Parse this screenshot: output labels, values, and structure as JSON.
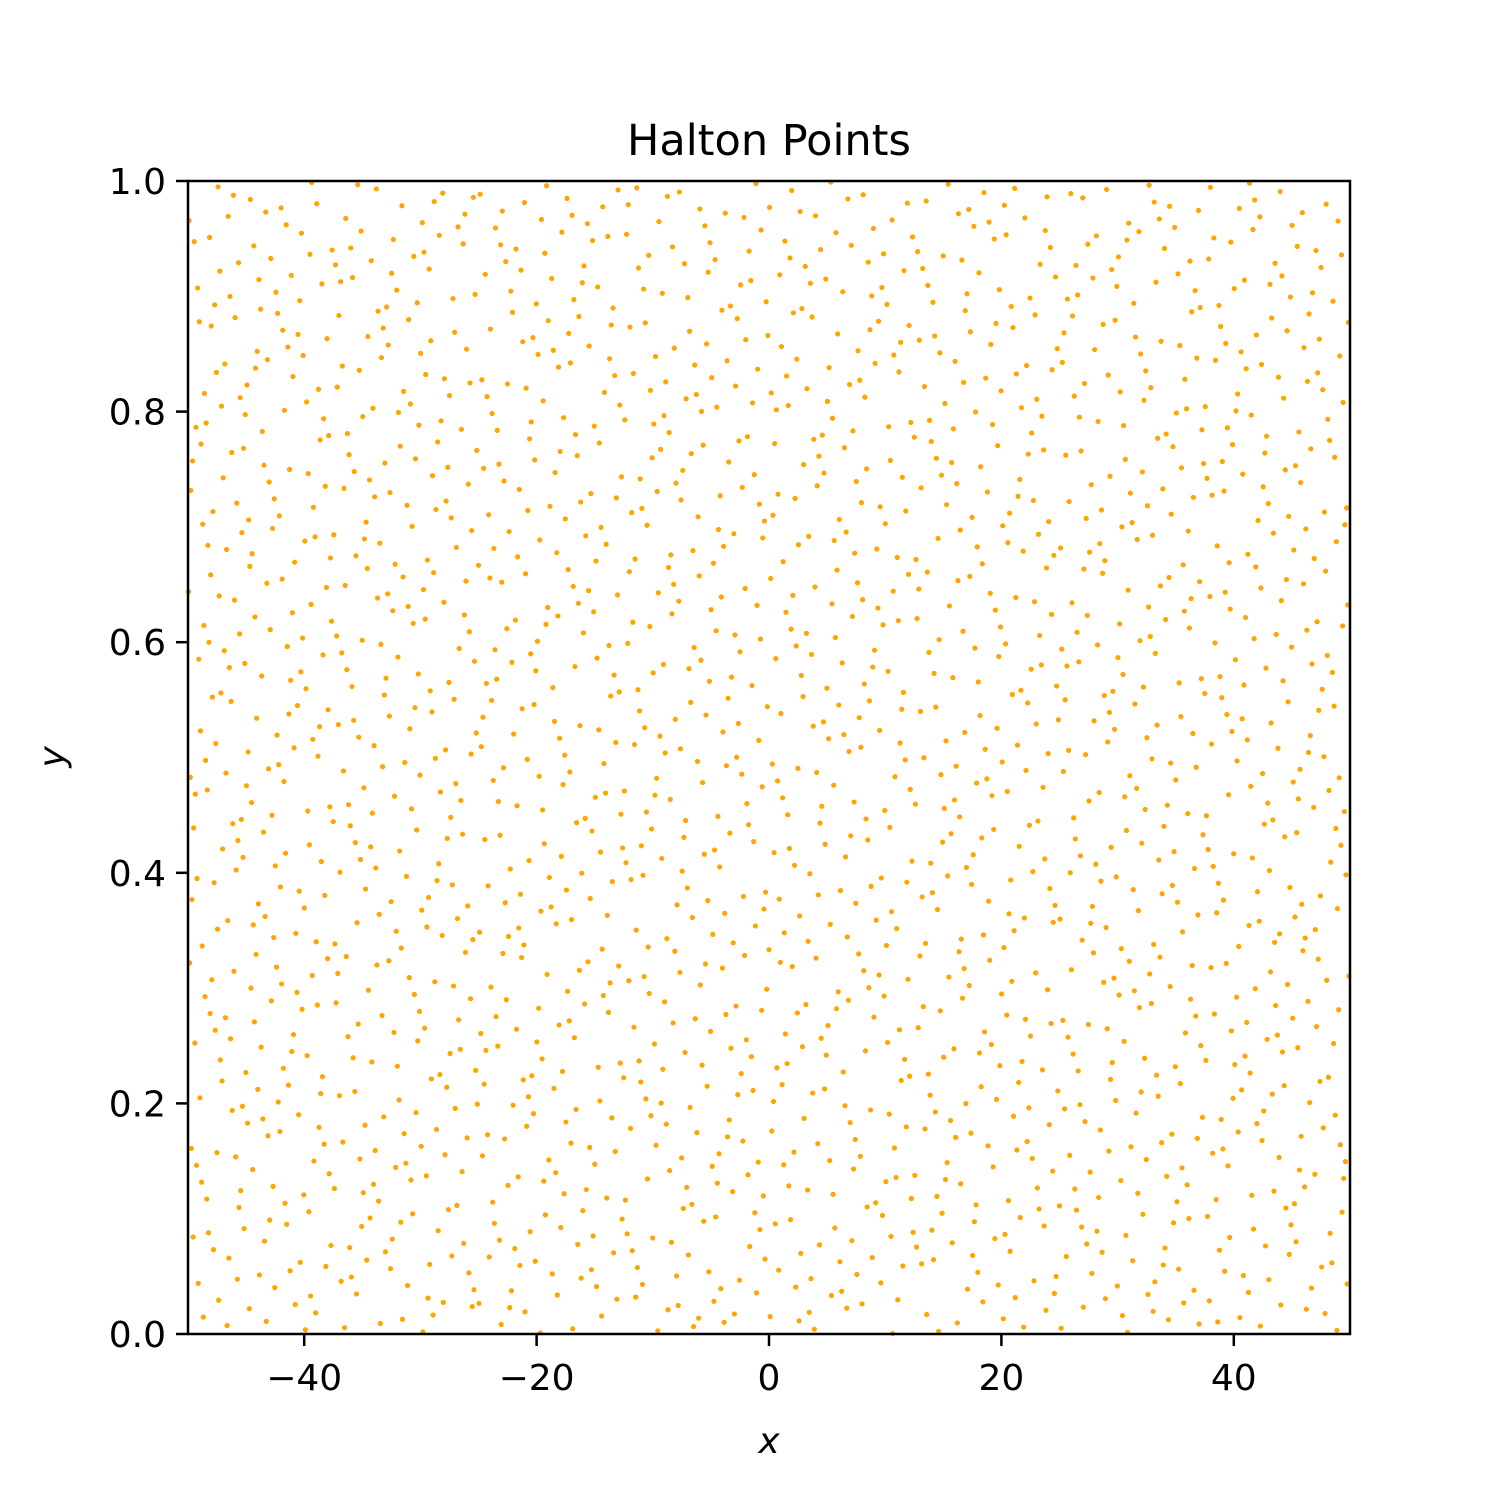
{
  "chart_data": {
    "type": "scatter",
    "title": "Halton Points",
    "xlabel": "x",
    "ylabel": "y",
    "xlim": [
      -50,
      50
    ],
    "ylim": [
      0,
      1
    ],
    "xticks": [
      -40,
      -20,
      0,
      20,
      40
    ],
    "xtick_labels": [
      "−40",
      "−20",
      "0",
      "20",
      "40"
    ],
    "yticks": [
      0.0,
      0.2,
      0.4,
      0.6,
      0.8,
      1.0
    ],
    "ytick_labels": [
      "0.0",
      "0.2",
      "0.4",
      "0.6",
      "0.8",
      "1.0"
    ],
    "grid": false,
    "marker_color": "#FFA500",
    "series": [
      {
        "generator": "halton",
        "bases": [
          2,
          3
        ],
        "count": 2000,
        "x_range": [
          -50,
          50
        ],
        "y_range": [
          0,
          1
        ]
      }
    ]
  }
}
